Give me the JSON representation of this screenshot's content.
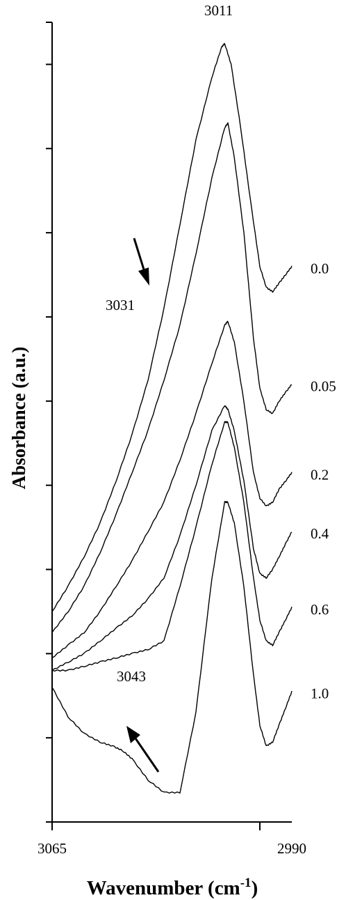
{
  "chart_data": {
    "type": "line",
    "title": "",
    "xlabel": "Wavenumber (cm",
    "xlabel_sup": "-1",
    "xlabel_close": ")",
    "ylabel": "Absorbance (a.u.)",
    "xlim": [
      3065,
      2990
    ],
    "ylim": [
      0,
      19
    ],
    "x_tick_labels": [
      "3065",
      "2990"
    ],
    "y_ticks": [
      0,
      2,
      4,
      6,
      8,
      10,
      12,
      14,
      16,
      18
    ],
    "grid": false,
    "legend": "none",
    "series": [
      {
        "name": "0.0",
        "x": [
          3065,
          3060,
          3055,
          3050,
          3045,
          3040,
          3035,
          3030,
          3025,
          3020,
          3015,
          3012,
          3011,
          3009,
          3006,
          3003,
          3000,
          2998,
          2996,
          2994,
          2992,
          2990
        ],
        "y": [
          5.0,
          5.6,
          6.3,
          7.1,
          8.1,
          9.2,
          10.5,
          12.2,
          14.2,
          16.2,
          17.7,
          18.4,
          18.5,
          18.0,
          16.5,
          14.8,
          13.2,
          12.7,
          12.6,
          12.8,
          13.0,
          13.2
        ]
      },
      {
        "name": "0.05",
        "x": [
          3065,
          3060,
          3055,
          3050,
          3045,
          3040,
          3035,
          3030,
          3025,
          3020,
          3015,
          3011,
          3010,
          3008,
          3005,
          3002,
          3000,
          2998,
          2996,
          2994,
          2992,
          2990
        ],
        "y": [
          4.5,
          5.0,
          5.6,
          6.4,
          7.3,
          8.3,
          9.3,
          10.5,
          11.8,
          13.5,
          15.3,
          16.5,
          16.6,
          15.8,
          14.0,
          11.5,
          10.3,
          9.8,
          9.7,
          10.0,
          10.2,
          10.4
        ]
      },
      {
        "name": "0.2",
        "x": [
          3065,
          3060,
          3055,
          3050,
          3045,
          3040,
          3035,
          3030,
          3025,
          3020,
          3015,
          3011,
          3010,
          3008,
          3005,
          3002,
          3000,
          2998,
          2996,
          2994,
          2992,
          2990
        ],
        "y": [
          3.9,
          4.2,
          4.5,
          5.0,
          5.6,
          6.2,
          6.9,
          7.6,
          8.6,
          9.7,
          10.9,
          11.8,
          11.9,
          11.4,
          10.0,
          8.3,
          7.7,
          7.5,
          7.6,
          7.9,
          8.1,
          8.3
        ]
      },
      {
        "name": "0.4",
        "x": [
          3065,
          3060,
          3055,
          3050,
          3045,
          3040,
          3035,
          3030,
          3025,
          3020,
          3015,
          3011,
          3010,
          3008,
          3005,
          3002,
          3000,
          2998,
          2996,
          2994,
          2992,
          2990
        ],
        "y": [
          3.6,
          3.8,
          4.0,
          4.3,
          4.6,
          4.9,
          5.3,
          5.8,
          6.8,
          8.0,
          9.3,
          9.9,
          9.8,
          9.3,
          8.1,
          6.5,
          5.9,
          5.8,
          6.0,
          6.3,
          6.6,
          6.9
        ]
      },
      {
        "name": "0.6",
        "x": [
          3065,
          3060,
          3055,
          3050,
          3045,
          3040,
          3035,
          3030,
          3025,
          3020,
          3015,
          3011,
          3010,
          3008,
          3005,
          3002,
          3000,
          2998,
          2996,
          2994,
          2992,
          2990
        ],
        "y": [
          3.6,
          3.6,
          3.7,
          3.8,
          3.9,
          4.0,
          4.1,
          4.3,
          5.6,
          7.0,
          8.5,
          9.5,
          9.5,
          8.9,
          7.6,
          5.8,
          4.8,
          4.3,
          4.2,
          4.5,
          4.8,
          5.1
        ]
      },
      {
        "name": "1.0",
        "x": [
          3065,
          3060,
          3055,
          3050,
          3046,
          3043,
          3040,
          3035,
          3030,
          3025,
          3020,
          3015,
          3011,
          3010,
          3008,
          3005,
          3002,
          3000,
          2998,
          2996,
          2994,
          2992,
          2990
        ],
        "y": [
          3.2,
          2.5,
          2.1,
          1.9,
          1.8,
          1.7,
          1.5,
          1.0,
          0.7,
          0.7,
          2.6,
          5.8,
          7.6,
          7.6,
          7.1,
          5.6,
          3.5,
          2.3,
          1.8,
          1.9,
          2.3,
          2.7,
          3.1
        ]
      }
    ],
    "annotations": [
      {
        "text": "3011",
        "x": 3011,
        "y": 18.5
      },
      {
        "text": "3031",
        "x": 3031
      },
      {
        "text": "3043",
        "x": 3043
      }
    ]
  }
}
